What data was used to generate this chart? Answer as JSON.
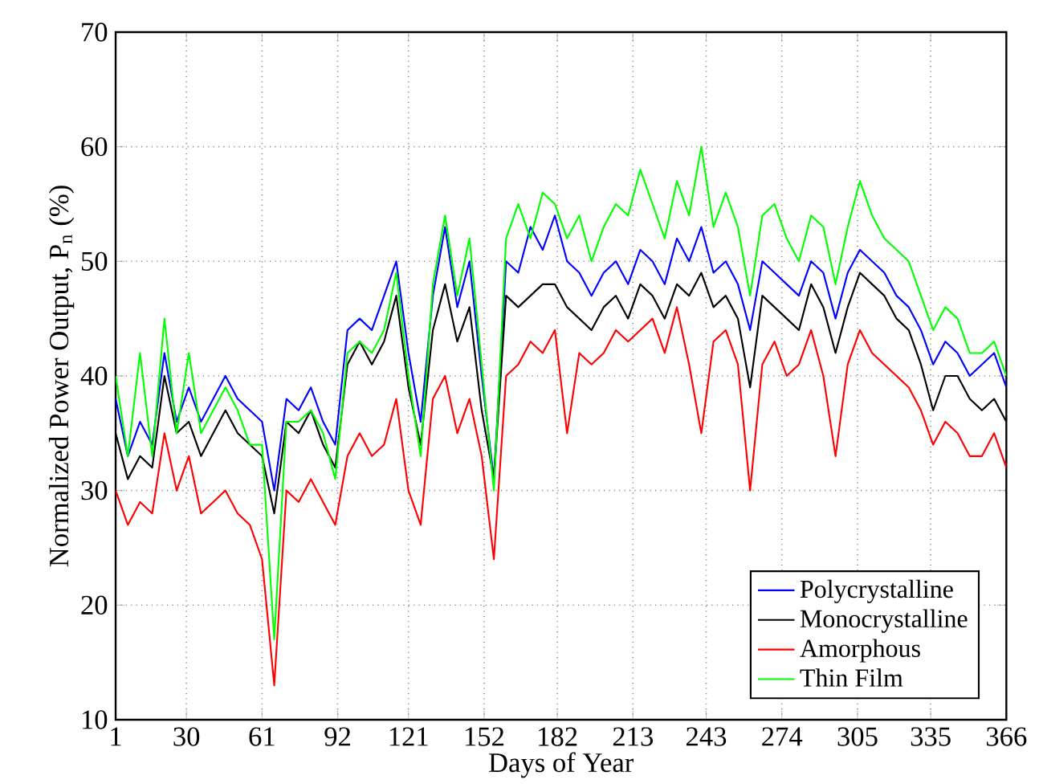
{
  "chart_data": {
    "type": "line",
    "xlabel": "Days of Year",
    "ylabel": "Normalized Power Output, P$_{n}$ (%)",
    "xlim": [
      1,
      366
    ],
    "ylim": [
      10,
      70
    ],
    "xticks": [
      1,
      30,
      61,
      92,
      121,
      152,
      182,
      213,
      243,
      274,
      305,
      335,
      366
    ],
    "yticks": [
      10,
      20,
      30,
      40,
      50,
      60,
      70
    ],
    "grid": true,
    "legend": "bottom right",
    "marker": "none",
    "line_style": "solid",
    "x": [
      1,
      6,
      11,
      16,
      21,
      26,
      31,
      36,
      41,
      46,
      51,
      56,
      61,
      66,
      71,
      76,
      81,
      86,
      91,
      96,
      101,
      106,
      111,
      116,
      121,
      126,
      131,
      136,
      141,
      146,
      151,
      156,
      161,
      166,
      171,
      176,
      181,
      186,
      191,
      196,
      201,
      206,
      211,
      216,
      221,
      226,
      231,
      236,
      241,
      246,
      251,
      256,
      261,
      266,
      271,
      276,
      281,
      286,
      291,
      296,
      301,
      306,
      311,
      316,
      321,
      326,
      331,
      336,
      341,
      346,
      351,
      356,
      361,
      366
    ],
    "series": [
      {
        "name": "Polycrystalline",
        "color": "#0000ff",
        "values": [
          38,
          33,
          36,
          34,
          42,
          36,
          39,
          36,
          38,
          40,
          38,
          37,
          36,
          30,
          38,
          37,
          39,
          36,
          34,
          44,
          45,
          44,
          47,
          50,
          42,
          36,
          47,
          53,
          46,
          50,
          40,
          31,
          50,
          49,
          53,
          51,
          54,
          50,
          49,
          47,
          49,
          50,
          48,
          51,
          50,
          48,
          52,
          50,
          53,
          49,
          50,
          48,
          44,
          50,
          49,
          48,
          47,
          50,
          49,
          45,
          49,
          51,
          50,
          49,
          47,
          46,
          44,
          41,
          43,
          42,
          40,
          41,
          42,
          39
        ]
      },
      {
        "name": "Monocrystalline",
        "color": "#000000",
        "values": [
          35,
          31,
          33,
          32,
          40,
          35,
          36,
          33,
          35,
          37,
          35,
          34,
          33,
          28,
          36,
          35,
          37,
          34,
          32,
          41,
          43,
          41,
          43,
          47,
          39,
          34,
          44,
          48,
          43,
          46,
          37,
          31,
          47,
          46,
          47,
          48,
          48,
          46,
          45,
          44,
          46,
          47,
          45,
          48,
          47,
          45,
          48,
          47,
          49,
          46,
          47,
          45,
          39,
          47,
          46,
          45,
          44,
          48,
          46,
          42,
          46,
          49,
          48,
          47,
          45,
          44,
          41,
          37,
          40,
          40,
          38,
          37,
          38,
          36
        ]
      },
      {
        "name": "Amorphous",
        "color": "#ff0000",
        "values": [
          30,
          27,
          29,
          28,
          35,
          30,
          33,
          28,
          29,
          30,
          28,
          27,
          24,
          13,
          30,
          29,
          31,
          29,
          27,
          33,
          35,
          33,
          34,
          38,
          30,
          27,
          38,
          40,
          35,
          38,
          33,
          24,
          40,
          41,
          43,
          42,
          44,
          35,
          42,
          41,
          42,
          44,
          43,
          44,
          45,
          42,
          46,
          41,
          35,
          43,
          44,
          41,
          30,
          41,
          43,
          40,
          41,
          44,
          40,
          33,
          41,
          44,
          42,
          41,
          40,
          39,
          37,
          34,
          36,
          35,
          33,
          33,
          35,
          32
        ]
      },
      {
        "name": "Thin Film",
        "color": "#00ff00",
        "values": [
          40,
          33,
          42,
          33,
          45,
          35,
          42,
          35,
          37,
          39,
          37,
          34,
          34,
          17,
          36,
          36,
          37,
          35,
          31,
          42,
          43,
          42,
          44,
          49,
          40,
          33,
          48,
          54,
          47,
          52,
          41,
          30,
          52,
          55,
          52,
          56,
          55,
          52,
          54,
          50,
          53,
          55,
          54,
          58,
          55,
          52,
          57,
          54,
          60,
          53,
          56,
          53,
          47,
          54,
          55,
          52,
          50,
          54,
          53,
          48,
          53,
          57,
          54,
          52,
          51,
          50,
          47,
          44,
          46,
          45,
          42,
          42,
          43,
          40
        ]
      }
    ]
  }
}
